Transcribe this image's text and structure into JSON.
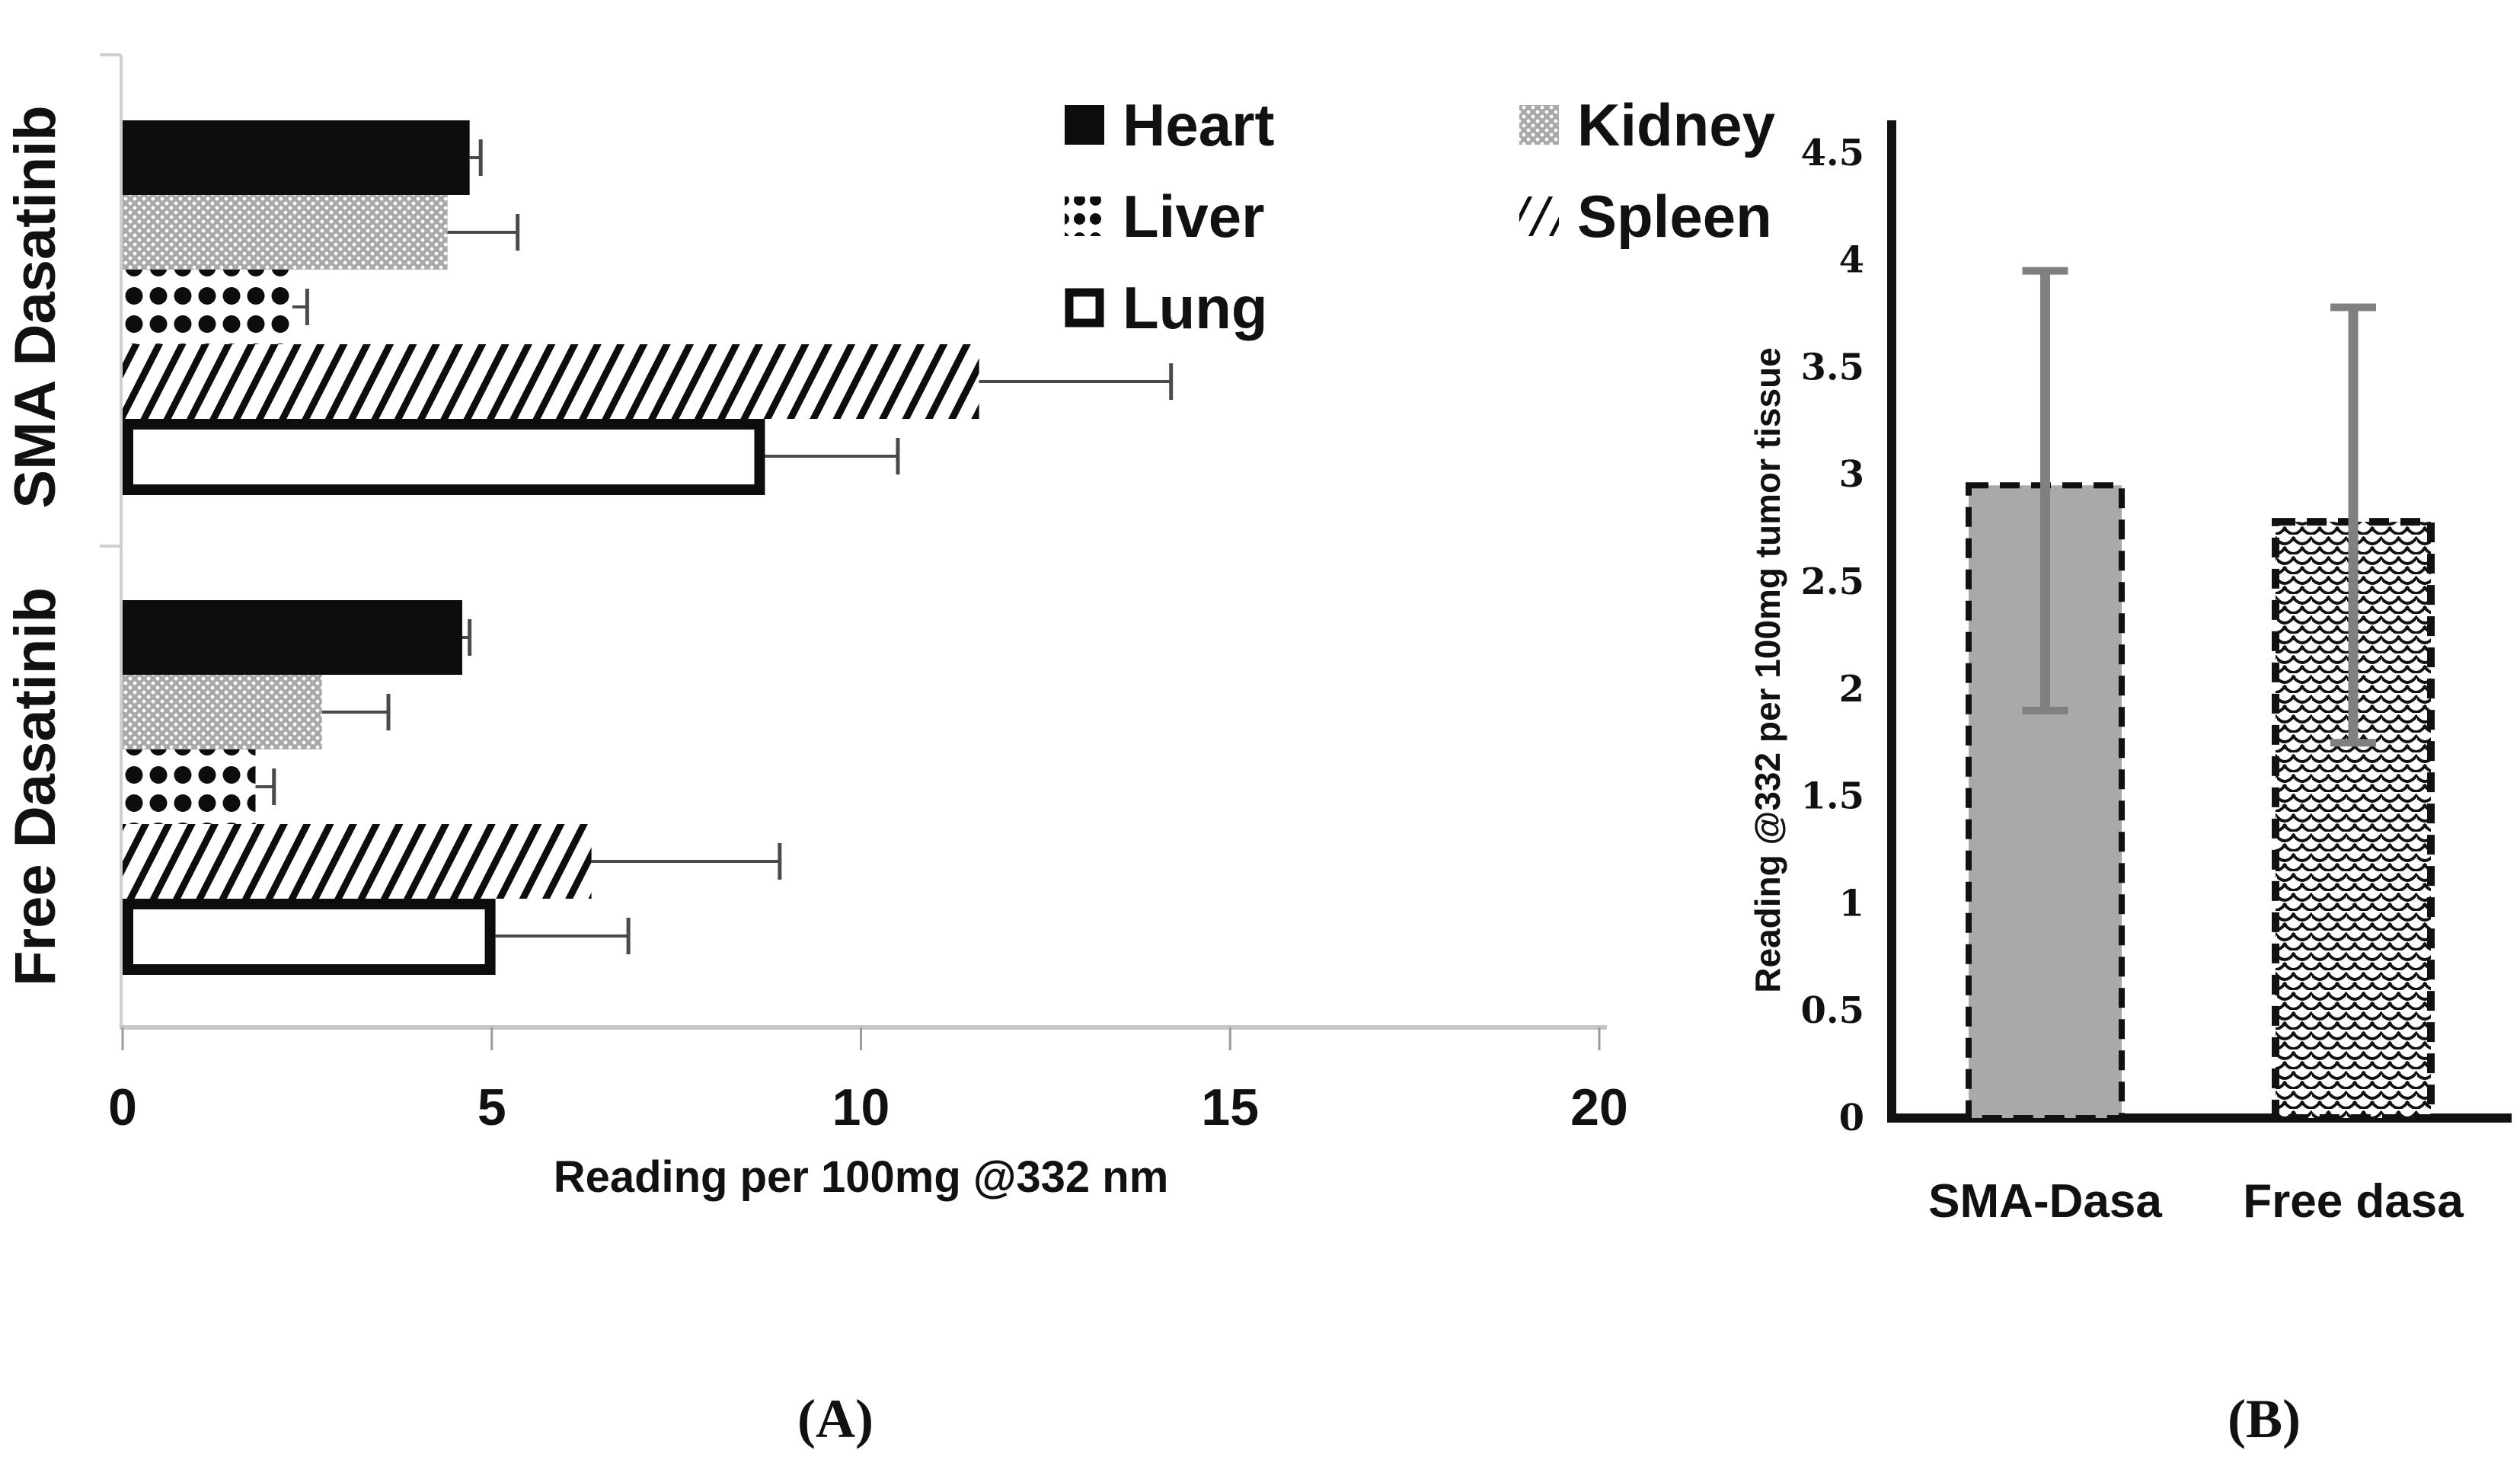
{
  "figure": {
    "caption_a": "(A)",
    "caption_b": "(B)"
  },
  "colors": {
    "bar_black": "#0d0d0d",
    "kidney_gray": "#a9a9a9",
    "tumor_bar_gray": "#a9a9a9",
    "error_bar_gray_b": "#808080",
    "error_bar_dark_a": "#4a4a4a",
    "axis_light_gray": "#c7c7c7",
    "axis_black": "#111111",
    "text": "#111111"
  },
  "chart_data": [
    {
      "type": "bar",
      "orientation": "horizontal",
      "title": "",
      "xlabel": "Reading per 100mg @332 nm",
      "xlim": [
        0,
        20
      ],
      "xtick_values": [
        0,
        5,
        10,
        15,
        20
      ],
      "xtick_labels": [
        "0",
        "5",
        "10",
        "15",
        "20"
      ],
      "grid": false,
      "groups": [
        "SMA Dasatinib",
        "Free Dasatinib"
      ],
      "series": [
        {
          "name": "Heart",
          "pattern": "solid-black",
          "values": [
            4.7,
            4.6
          ],
          "err_high": [
            4.85,
            4.7
          ]
        },
        {
          "name": "Kidney",
          "pattern": "gray-dots",
          "values": [
            4.4,
            2.7
          ],
          "err_high": [
            5.35,
            3.6
          ]
        },
        {
          "name": "Liver",
          "pattern": "black-dots",
          "values": [
            2.3,
            1.8
          ],
          "err_high": [
            2.5,
            2.05
          ]
        },
        {
          "name": "Spleen",
          "pattern": "diag-stripes",
          "values": [
            11.6,
            6.35
          ],
          "err_high": [
            14.2,
            8.9
          ]
        },
        {
          "name": "Lung",
          "pattern": "white-outline",
          "values": [
            8.7,
            5.05
          ],
          "err_high": [
            10.5,
            6.85
          ]
        }
      ],
      "legend_position": "upper right",
      "legend_columns": [
        [
          "Heart",
          "Liver",
          "Lung"
        ],
        [
          "Kidney",
          "Spleen"
        ]
      ]
    },
    {
      "type": "bar",
      "orientation": "vertical",
      "title": "",
      "ylabel": "Reading @332 per 100mg tumor tissue",
      "ylim": [
        0,
        4.5
      ],
      "ytick_labels": [
        "0",
        "0.5",
        "1",
        "1.5",
        "2",
        "2.5",
        "3",
        "3.5",
        "4",
        "4.5"
      ],
      "grid": false,
      "categories": [
        "SMA-Dasa",
        "Free dasa"
      ],
      "values": [
        2.95,
        2.78
      ],
      "err_low": [
        1.9,
        1.75
      ],
      "err_high": [
        3.95,
        3.78
      ],
      "patterns": [
        "gray-solid",
        "weave"
      ]
    }
  ]
}
